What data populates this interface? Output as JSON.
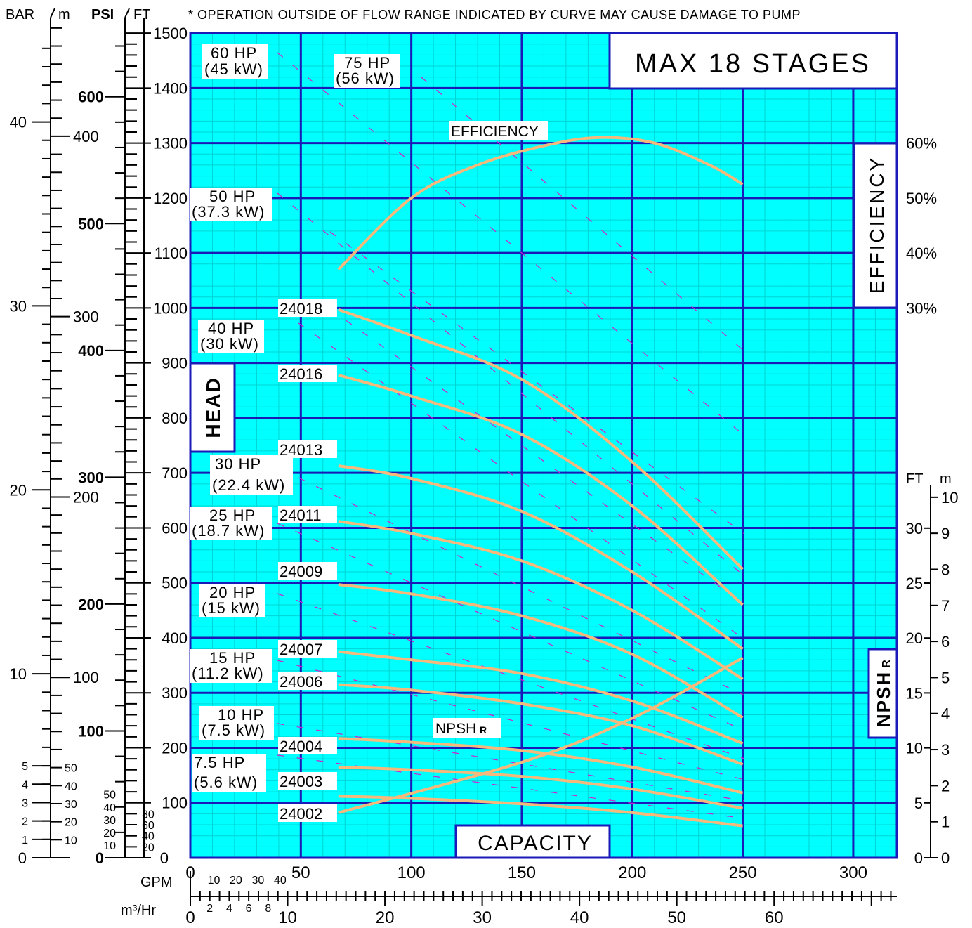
{
  "header": {
    "axis_labels": [
      "BAR",
      "m",
      "PSI",
      "FT"
    ],
    "note": "* OPERATION OUTSIDE OF FLOW RANGE INDICATED BY CURVE MAY CAUSE DAMAGE TO PUMP"
  },
  "title_box": "MAX 18 STAGES",
  "labels": {
    "head": "HEAD",
    "efficiency_box": "EFFICIENCY",
    "npsh_box": "NPSHR",
    "capacity": "CAPACITY",
    "efficiency_curve": "EFFICIENCY",
    "npsh_curve": "NPSHR",
    "gpm": "GPM",
    "m3hr": "m³/Hr",
    "ft_small": "FT",
    "m_small": "m"
  },
  "colors": {
    "grid_fine": "#00d4d4",
    "grid_major": "#1a1ab8",
    "background": "#00ffff",
    "curve": "#f5b97c",
    "hp_lines": "#d020d0"
  },
  "chart_data": {
    "type": "line",
    "title": "MAX 18 STAGES",
    "xlabel": "CAPACITY",
    "ylabel": "HEAD",
    "x_unit": "GPM",
    "y_unit": "FT",
    "xlim": [
      0,
      320
    ],
    "ylim": [
      0,
      1500
    ],
    "x_ticks": [
      "0",
      "50",
      "100",
      "150",
      "200",
      "250",
      "300"
    ],
    "y_ticks": [
      "0",
      "100",
      "200",
      "300",
      "400",
      "500",
      "600",
      "700",
      "800",
      "900",
      "1000",
      "1100",
      "1200",
      "1300",
      "1400",
      "1500"
    ],
    "grid": true,
    "series": [
      {
        "name": "24018",
        "x": [
          67,
          100,
          150,
          200,
          250
        ],
        "y": [
          997,
          950,
          870,
          720,
          525
        ]
      },
      {
        "name": "24016",
        "x": [
          67,
          100,
          150,
          200,
          250
        ],
        "y": [
          878,
          840,
          770,
          640,
          460
        ]
      },
      {
        "name": "24013",
        "x": [
          67,
          100,
          150,
          200,
          250
        ],
        "y": [
          713,
          690,
          630,
          520,
          380
        ]
      },
      {
        "name": "24011",
        "x": [
          67,
          100,
          150,
          200,
          250
        ],
        "y": [
          612,
          590,
          540,
          450,
          325
        ]
      },
      {
        "name": "24009",
        "x": [
          67,
          100,
          150,
          200,
          250
        ],
        "y": [
          497,
          480,
          440,
          370,
          255
        ]
      },
      {
        "name": "24007",
        "x": [
          67,
          100,
          150,
          200,
          250
        ],
        "y": [
          375,
          360,
          335,
          285,
          208
        ]
      },
      {
        "name": "24006",
        "x": [
          67,
          100,
          150,
          200,
          250
        ],
        "y": [
          315,
          305,
          280,
          240,
          170
        ]
      },
      {
        "name": "24004",
        "x": [
          67,
          100,
          150,
          200,
          250
        ],
        "y": [
          217,
          210,
          195,
          165,
          118
        ]
      },
      {
        "name": "24003",
        "x": [
          67,
          100,
          150,
          200,
          250
        ],
        "y": [
          165,
          160,
          148,
          125,
          90
        ]
      },
      {
        "name": "24002",
        "x": [
          67,
          100,
          150,
          200,
          250
        ],
        "y": [
          112,
          108,
          98,
          82,
          58
        ]
      }
    ],
    "efficiency": {
      "axis_ticks": [
        "30%",
        "40%",
        "50%",
        "60%"
      ],
      "x": [
        67,
        100,
        130,
        160,
        185,
        210,
        235,
        250
      ],
      "y_percent": [
        37,
        50,
        56,
        59.5,
        61,
        60,
        56,
        52.5
      ]
    },
    "npshr": {
      "axis_ft_ticks": [
        "0",
        "5",
        "10",
        "15",
        "20",
        "25",
        "30"
      ],
      "axis_m_ticks": [
        "0",
        "1",
        "2",
        "3",
        "4",
        "5",
        "6",
        "7",
        "8",
        "9",
        "10"
      ],
      "x": [
        67,
        150,
        200,
        250
      ],
      "y_ft": [
        4.1,
        8.7,
        12.7,
        18.2
      ]
    },
    "hp_labels": [
      {
        "hp": "60 HP",
        "kw": "(45 kW)"
      },
      {
        "hp": "75 HP",
        "kw": "(56 kW)"
      },
      {
        "hp": "50 HP",
        "kw": "(37.3 kW)"
      },
      {
        "hp": "40 HP",
        "kw": "(30 kW)"
      },
      {
        "hp": "30 HP",
        "kw": "(22.4 kW)"
      },
      {
        "hp": "25 HP",
        "kw": "(18.7 kW)"
      },
      {
        "hp": "20 HP",
        "kw": "(15 kW)"
      },
      {
        "hp": "15 HP",
        "kw": "(11.2 kW)"
      },
      {
        "hp": "10 HP",
        "kw": "(7.5 kW)"
      },
      {
        "hp": "7.5 HP",
        "kw": "(5.6 kW)"
      }
    ],
    "bar_axis_ticks": [
      "0",
      "10",
      "20",
      "30",
      "40"
    ],
    "m_axis_ticks": [
      "0",
      "10",
      "20",
      "30",
      "40",
      "50",
      "100",
      "200",
      "300",
      "400"
    ],
    "psi_axis_ticks": [
      "0",
      "100",
      "200",
      "300",
      "400",
      "500",
      "600"
    ],
    "psi_small_ticks": [
      "10",
      "20",
      "30",
      "40",
      "50"
    ],
    "ft_small_ticks": [
      "20",
      "40",
      "60",
      "80"
    ],
    "gpm_small_ticks": [
      "10",
      "20",
      "30",
      "40"
    ],
    "m3hr_ticks": [
      "0",
      "10",
      "20",
      "30",
      "40",
      "50",
      "60"
    ],
    "m3hr_small_ticks": [
      "2",
      "4",
      "6",
      "8"
    ]
  }
}
